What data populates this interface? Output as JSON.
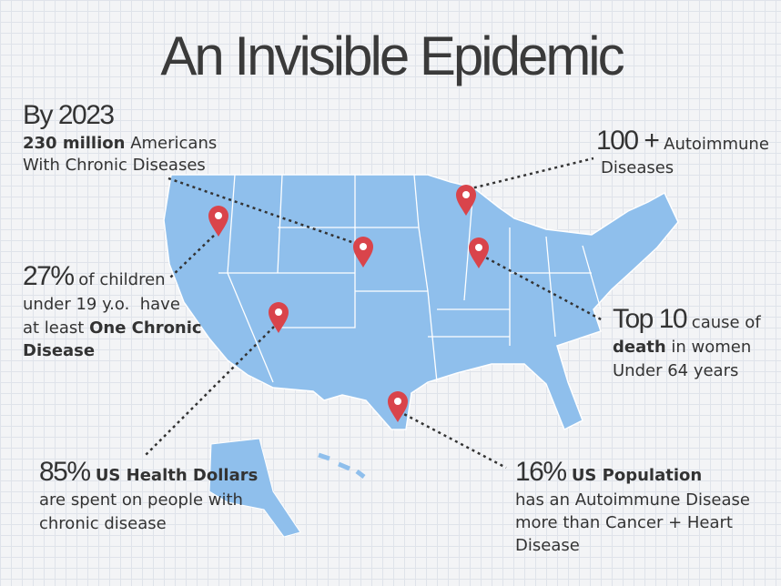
{
  "title": "An Invisible Epidemic",
  "callouts": [
    {
      "lines": [
        [
          "By 2023"
        ],
        [
          "230 million",
          " Americans"
        ],
        [
          "With Chronic Diseases"
        ]
      ]
    },
    {
      "lines": [
        [
          "100 +",
          " Autoimmune"
        ],
        [
          "Diseases"
        ]
      ]
    },
    {
      "lines": [
        [
          "27%",
          " of children"
        ],
        [
          "under 19 y.o.  have"
        ],
        [
          "at least ",
          "One Chronic"
        ],
        [
          "Disease"
        ]
      ]
    },
    {
      "lines": [
        [
          "Top 10",
          " cause of"
        ],
        [
          "death",
          " in women"
        ],
        [
          "Under 64 years"
        ]
      ]
    },
    {
      "lines": [
        [
          "85%",
          " US Health Dollars"
        ],
        [
          "are spent on people with"
        ],
        [
          "chronic disease"
        ]
      ]
    },
    {
      "lines": [
        [
          "16%",
          " US Population"
        ],
        [
          "has an Autoimmune Disease"
        ],
        [
          "more than Cancer + Heart"
        ],
        [
          "Disease"
        ]
      ]
    }
  ]
}
